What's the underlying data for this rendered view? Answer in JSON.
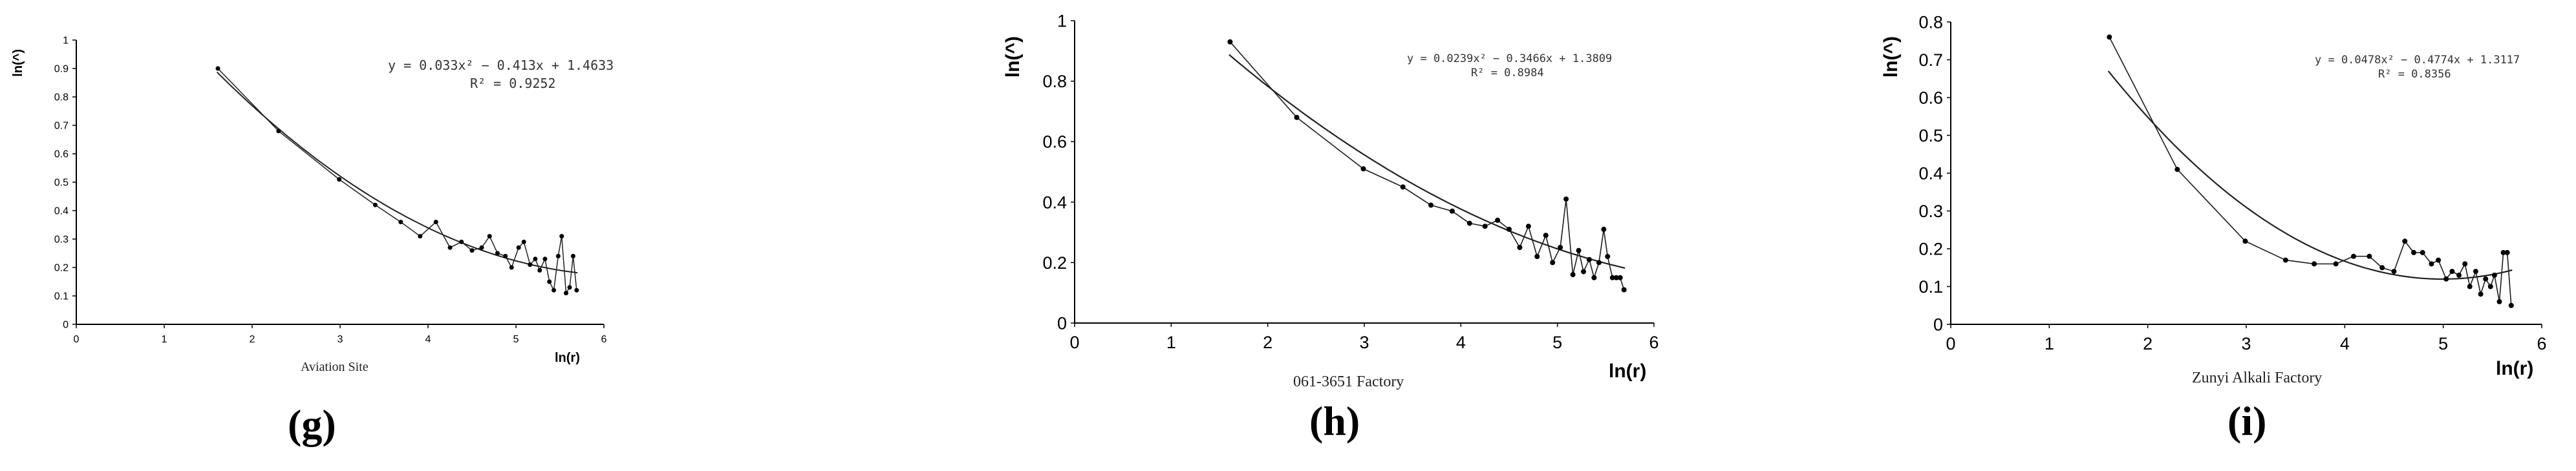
{
  "chart_data": [
    {
      "type": "line",
      "panel_label": "(g)",
      "site_label": "Aviation Site",
      "xlabel": "ln(r)",
      "ylabel": "ln(^)",
      "xlim": [
        0,
        6
      ],
      "ylim": [
        0,
        1
      ],
      "xticks": [
        "0",
        "1",
        "2",
        "3",
        "4",
        "5",
        "6"
      ],
      "yticks": [
        "0",
        "0.1",
        "0.2",
        "0.3",
        "0.4",
        "0.5",
        "0.6",
        "0.7",
        "0.8",
        "0.9",
        "1"
      ],
      "equation": "y = 0.033x² − 0.413x + 1.4633",
      "r_squared": "R² = 0.9252",
      "fit": {
        "a": 0.033,
        "b": -0.413,
        "c": 1.4633,
        "x_range": [
          1.6,
          5.7
        ]
      },
      "series": [
        {
          "x": [
            1.61,
            2.3,
            2.99,
            3.4,
            3.69,
            3.91,
            4.09,
            4.25,
            4.38,
            4.5,
            4.61,
            4.7,
            4.79,
            4.88,
            4.95,
            5.03,
            5.09,
            5.16,
            5.22,
            5.27,
            5.33,
            5.38,
            5.43,
            5.48,
            5.52,
            5.57,
            5.61,
            5.65,
            5.69
          ],
          "y": [
            0.9,
            0.68,
            0.51,
            0.42,
            0.36,
            0.31,
            0.36,
            0.27,
            0.29,
            0.26,
            0.27,
            0.31,
            0.25,
            0.24,
            0.2,
            0.27,
            0.29,
            0.21,
            0.23,
            0.19,
            0.23,
            0.15,
            0.12,
            0.24,
            0.31,
            0.11,
            0.13,
            0.24,
            0.12
          ]
        }
      ]
    },
    {
      "type": "line",
      "panel_label": "(h)",
      "site_label": "061-3651 Factory",
      "xlabel": "ln(r)",
      "ylabel": "ln(^)",
      "xlim": [
        0,
        6
      ],
      "ylim": [
        0,
        1
      ],
      "xticks": [
        "0",
        "1",
        "2",
        "3",
        "4",
        "5",
        "6"
      ],
      "yticks": [
        "0",
        "0.2",
        "0.4",
        "0.6",
        "0.8",
        "1"
      ],
      "equation": "y = 0.0239x² − 0.3466x + 1.3809",
      "r_squared": "R² = 0.8984",
      "fit": {
        "a": 0.0239,
        "b": -0.3466,
        "c": 1.3809,
        "x_range": [
          1.6,
          5.7
        ]
      },
      "series": [
        {
          "x": [
            1.61,
            2.3,
            2.99,
            3.4,
            3.69,
            3.91,
            4.09,
            4.25,
            4.38,
            4.5,
            4.61,
            4.7,
            4.79,
            4.88,
            4.95,
            5.03,
            5.09,
            5.16,
            5.22,
            5.27,
            5.33,
            5.38,
            5.43,
            5.48,
            5.52,
            5.57,
            5.61,
            5.65,
            5.69
          ],
          "y": [
            0.93,
            0.68,
            0.51,
            0.45,
            0.39,
            0.37,
            0.33,
            0.32,
            0.34,
            0.31,
            0.25,
            0.32,
            0.22,
            0.29,
            0.2,
            0.25,
            0.41,
            0.16,
            0.24,
            0.17,
            0.21,
            0.15,
            0.2,
            0.31,
            0.22,
            0.15,
            0.15,
            0.15,
            0.11
          ]
        }
      ]
    },
    {
      "type": "line",
      "panel_label": "(i)",
      "site_label": "Zunyi Alkali Factory",
      "xlabel": "ln(r)",
      "ylabel": "ln(^)",
      "xlim": [
        0,
        6
      ],
      "ylim": [
        0,
        0.8
      ],
      "xticks": [
        "0",
        "1",
        "2",
        "3",
        "4",
        "5",
        "6"
      ],
      "yticks": [
        "0",
        "0.1",
        "0.2",
        "0.3",
        "0.4",
        "0.5",
        "0.6",
        "0.7",
        "0.8"
      ],
      "equation": "y = 0.0478x² − 0.4774x + 1.3117",
      "r_squared": "R² = 0.8356",
      "fit": {
        "a": 0.0478,
        "b": -0.4774,
        "c": 1.3117,
        "x_range": [
          1.6,
          5.7
        ]
      },
      "series": [
        {
          "x": [
            1.61,
            2.3,
            2.99,
            3.4,
            3.69,
            3.91,
            4.09,
            4.25,
            4.38,
            4.5,
            4.61,
            4.7,
            4.79,
            4.88,
            4.95,
            5.03,
            5.09,
            5.16,
            5.22,
            5.27,
            5.33,
            5.38,
            5.43,
            5.48,
            5.52,
            5.57,
            5.61,
            5.65,
            5.69
          ],
          "y": [
            0.76,
            0.41,
            0.22,
            0.17,
            0.16,
            0.16,
            0.18,
            0.18,
            0.15,
            0.14,
            0.22,
            0.19,
            0.19,
            0.16,
            0.17,
            0.12,
            0.14,
            0.13,
            0.16,
            0.1,
            0.14,
            0.08,
            0.12,
            0.1,
            0.13,
            0.06,
            0.19,
            0.19,
            0.05
          ]
        }
      ]
    }
  ]
}
